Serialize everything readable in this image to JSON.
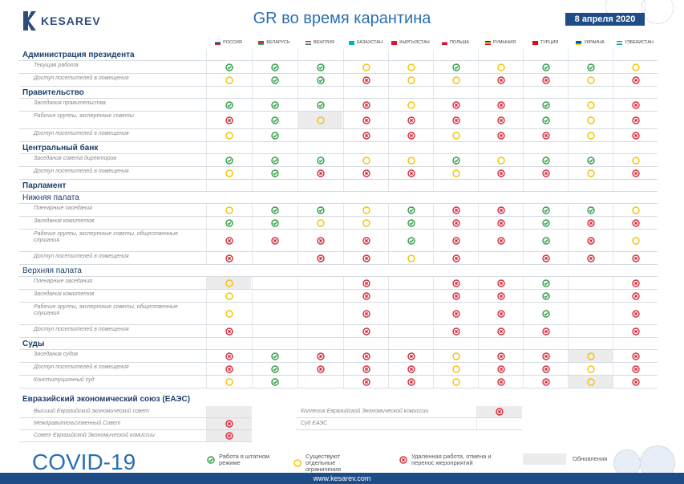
{
  "brand": {
    "logo_text": "KESAREV"
  },
  "title": "GR во время карантина",
  "date": "8 апреля 2020",
  "countries": [
    {
      "name": "РОССИЯ",
      "flag": [
        "#ffffff",
        "#1c3f94",
        "#d52b1e"
      ]
    },
    {
      "name": "БЕЛАРУСЬ",
      "flag": [
        "#c8313e",
        "#c8313e",
        "#4aa657"
      ]
    },
    {
      "name": "ВЕНГРИЯ",
      "flag": [
        "#cd2a3e",
        "#ffffff",
        "#436f4d"
      ]
    },
    {
      "name": "КАЗАХСТАН",
      "flag": [
        "#00afca",
        "#00afca",
        "#00afca"
      ]
    },
    {
      "name": "КЫРГЫЗСТАН",
      "flag": [
        "#e8112d",
        "#e8112d",
        "#e8112d"
      ]
    },
    {
      "name": "ПОЛЬША",
      "flag": [
        "#ffffff",
        "#dc143c",
        "#dc143c"
      ]
    },
    {
      "name": "РУМЫНИЯ",
      "flag": [
        "#002b7f",
        "#fcd116",
        "#ce1126"
      ]
    },
    {
      "name": "ТУРЦИЯ",
      "flag": [
        "#e30a17",
        "#e30a17",
        "#e30a17"
      ]
    },
    {
      "name": "УКРАИНА",
      "flag": [
        "#0057b7",
        "#0057b7",
        "#ffd700"
      ]
    },
    {
      "name": "УЗБЕКИСТАН",
      "flag": [
        "#1eb53a",
        "#ffffff",
        "#0099b5"
      ]
    }
  ],
  "rows": [
    {
      "kind": "section",
      "label": "Администрация президента"
    },
    {
      "kind": "item",
      "label": "Текущая работа",
      "v": "GGGYYGYGGY"
    },
    {
      "kind": "item",
      "label": "Доступ посетителей в помещения",
      "v": "YGGRYYRRYR"
    },
    {
      "kind": "section",
      "label": "Правительство"
    },
    {
      "kind": "item",
      "label": "Заседания правительства",
      "v": "GGGRYRRGYR"
    },
    {
      "kind": "item",
      "label": "Рабочие группы, экспертные советы",
      "v": "RGYRRRRGYR",
      "gray": [
        2
      ]
    },
    {
      "kind": "item",
      "label": "Доступ посетителей в помещения",
      "v": "YG-RRYRRYR"
    },
    {
      "kind": "section",
      "label": "Центральный банк"
    },
    {
      "kind": "item",
      "label": "Заседания совета директоров",
      "v": "GGGYYGYGGY"
    },
    {
      "kind": "item",
      "label": "Доступ посетителей в помещения",
      "v": "YGRRRYRRYR"
    },
    {
      "kind": "section",
      "label": "Парламент"
    },
    {
      "kind": "subsection",
      "label": "Нижняя палата"
    },
    {
      "kind": "item",
      "label": "Пленарные заседания",
      "v": "YGGYGRRGGY"
    },
    {
      "kind": "item",
      "label": "Заседания комитетов",
      "v": "GGYYGRRGRR"
    },
    {
      "kind": "item",
      "label": "Рабочие группы, экспертные советы, общественные слушания",
      "v": "RRRRGRRGRY"
    },
    {
      "kind": "item",
      "label": "Доступ посетителей в помещения",
      "v": "R-RRYR-RRR"
    },
    {
      "kind": "subsection",
      "label": "Верхняя палата"
    },
    {
      "kind": "item",
      "label": "Пленарные заседания",
      "v": "Y--R-RRG-R",
      "gray": [
        0
      ]
    },
    {
      "kind": "item",
      "label": "Заседания комитетов",
      "v": "Y--R-RRG-R"
    },
    {
      "kind": "item",
      "label": "Рабочие группы, экспертные советы, общественные слушания",
      "v": "Y--R-RRG-R"
    },
    {
      "kind": "item",
      "label": "Доступ посетителей в помещения",
      "v": "R--R-RRR-R"
    },
    {
      "kind": "section",
      "label": "Суды"
    },
    {
      "kind": "item",
      "label": "Заседания судов",
      "v": "RGRRRYRRYR",
      "gray": [
        8
      ]
    },
    {
      "kind": "item",
      "label": "Доступ посетителей в помещения",
      "v": "RGRRRYRRYR"
    },
    {
      "kind": "item",
      "label": "Конституционный суд",
      "v": "YG-RRYRRYR",
      "gray": [
        8
      ]
    }
  ],
  "eaes": {
    "title": "Евразийский экономический союз (ЕАЭС)",
    "left": [
      {
        "label": "Высший Евразийский экономический совет",
        "v": "-"
      },
      {
        "label": "Межправительственный Совет",
        "v": "R"
      },
      {
        "label": "Совет Евразийской Экономической комиссии",
        "v": "R"
      }
    ],
    "right": [
      {
        "label": "Коллегия Евразийской Экономической комиссии",
        "v": "R"
      },
      {
        "label": "Суд ЕАЭС",
        "v": "-"
      }
    ]
  },
  "legend": {
    "green": "Работа в штатном режиме",
    "yellow": "Существуют отдельные ограничения",
    "red": "Удаленная работа, отмена и перенос мероприятий",
    "gray": "Обновления"
  },
  "covid": "COVID-19",
  "footer": "www.kesarev.com",
  "colors": {
    "green": "#2f9e44",
    "yellow": "#f2c200",
    "red": "#d42b3a",
    "navy": "#1e4c86"
  }
}
